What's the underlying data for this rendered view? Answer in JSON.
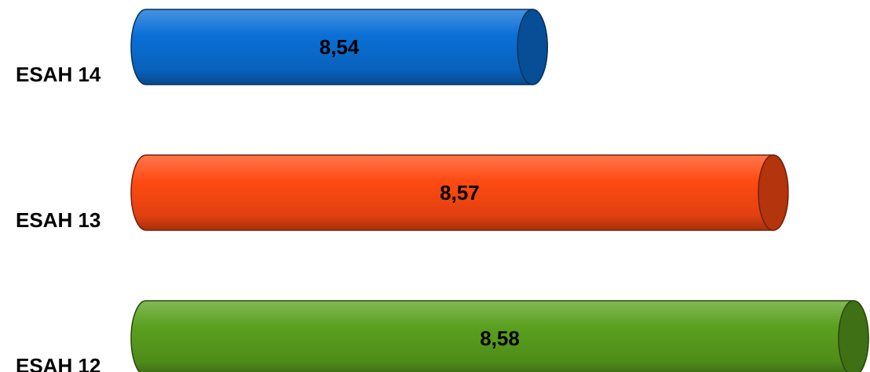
{
  "chart_data": {
    "type": "bar",
    "orientation": "horizontal",
    "style": "3d-cylinder",
    "categories": [
      "ESAH 14",
      "ESAH 13",
      "ESAH 12"
    ],
    "values": [
      8.54,
      8.57,
      8.58
    ],
    "value_labels": [
      "8,54",
      "8,57",
      "8,58"
    ],
    "colors": [
      "#0a6fd6",
      "#ff4a12",
      "#5aa01e"
    ],
    "axis_min": 8.49,
    "axis_max": 8.58,
    "grid": false,
    "legend": "none"
  }
}
